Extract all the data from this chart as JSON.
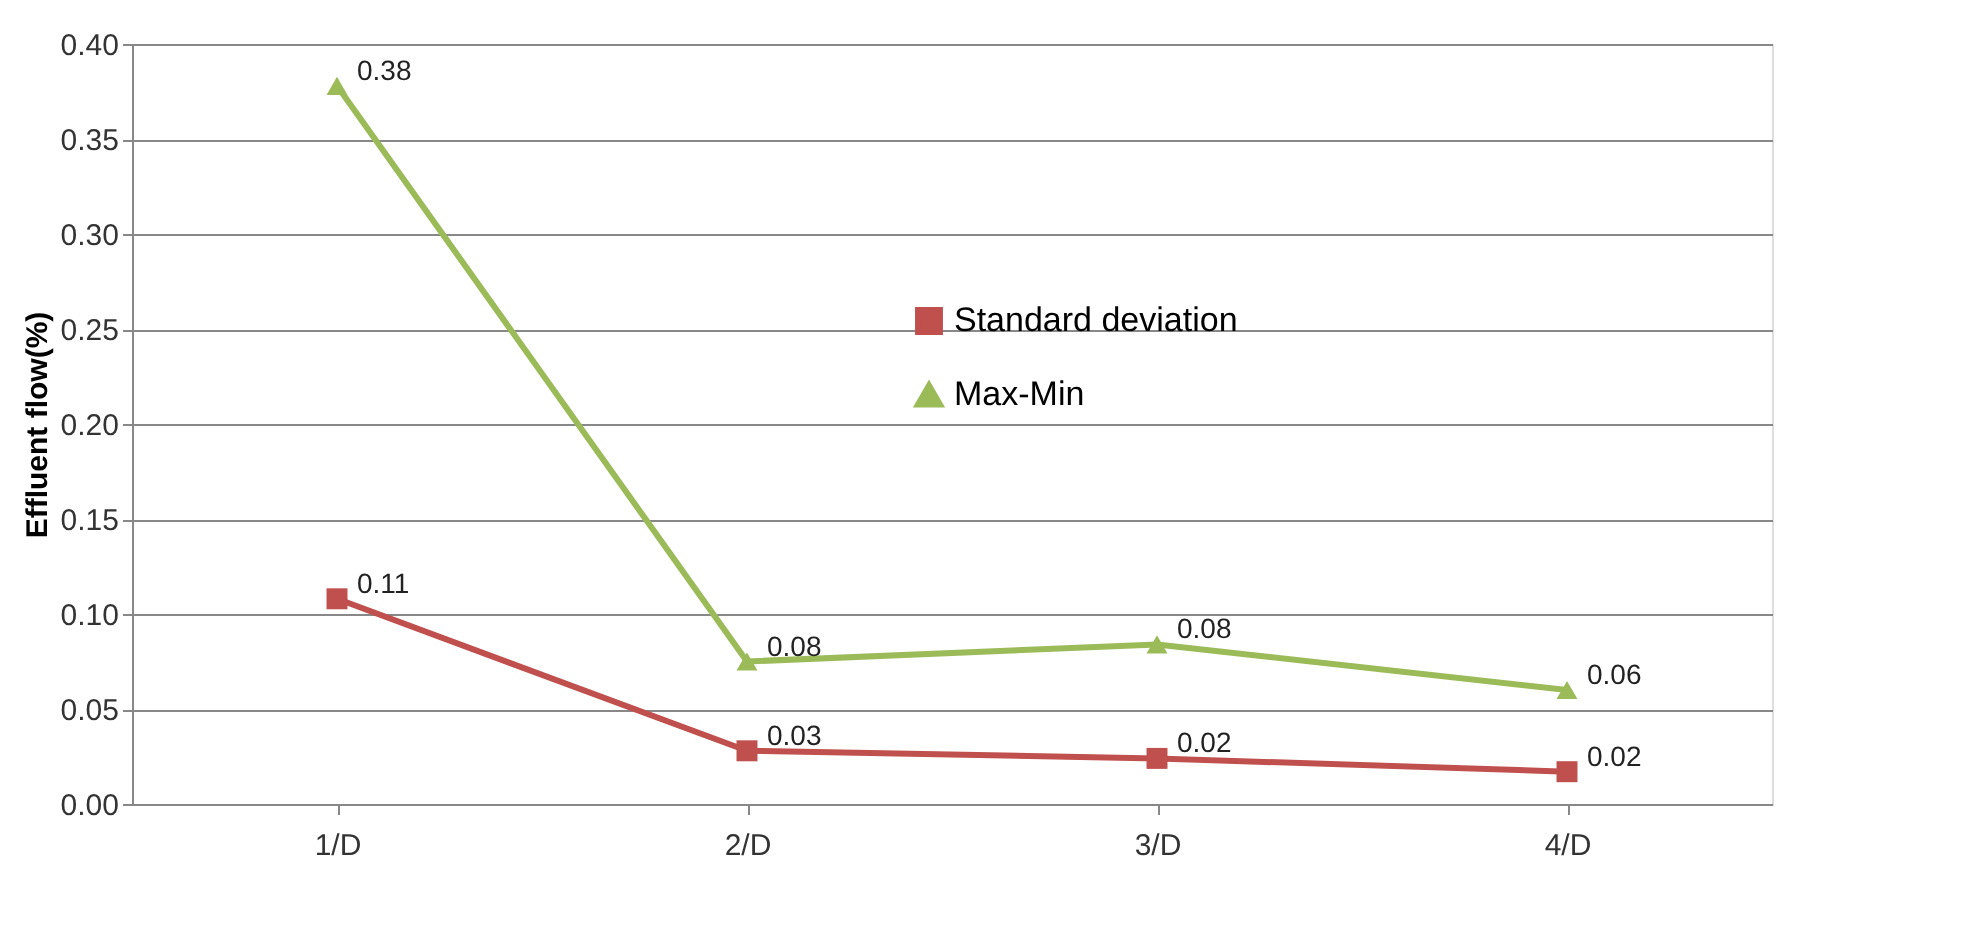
{
  "chart_data": {
    "type": "line",
    "ylabel": "Effluent flow(%)",
    "categories": [
      "1/D",
      "2/D",
      "3/D",
      "4/D"
    ],
    "series": [
      {
        "name": "Standard deviation",
        "color": "#c0504d",
        "marker": "square",
        "values": [
          0.108,
          0.028,
          0.024,
          0.017
        ],
        "value_labels": [
          "0.11",
          "0.03",
          "0.02",
          "0.02"
        ]
      },
      {
        "name": "Max-Min",
        "color": "#9bbb59",
        "marker": "triangle",
        "values": [
          0.378,
          0.075,
          0.084,
          0.06
        ],
        "value_labels": [
          "0.38",
          "0.08",
          "0.08",
          "0.06"
        ]
      }
    ],
    "ylim": [
      0,
      0.4
    ],
    "yticks": [
      {
        "value": 0,
        "label": "0.00"
      },
      {
        "value": 0.05,
        "label": "0.05"
      },
      {
        "value": 0.1,
        "label": "0.10"
      },
      {
        "value": 0.15,
        "label": "0.15"
      },
      {
        "value": 0.2,
        "label": "0.20"
      },
      {
        "value": 0.25,
        "label": "0.25"
      },
      {
        "value": 0.3,
        "label": "0.30"
      },
      {
        "value": 0.35,
        "label": "0.35"
      },
      {
        "value": 0.4,
        "label": "0.40"
      }
    ],
    "grid": "y",
    "legend": "center",
    "line_style": "solid"
  }
}
